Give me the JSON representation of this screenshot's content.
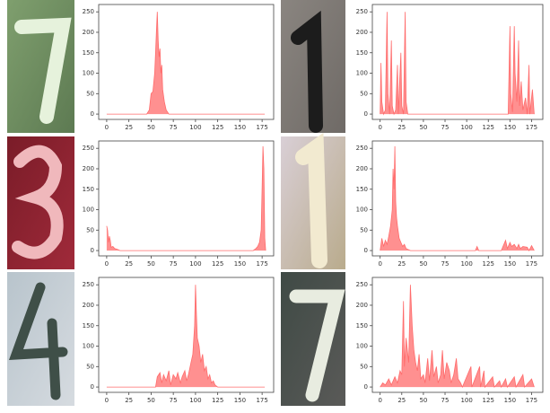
{
  "chart_data": [
    {
      "type": "area",
      "color": "#ff6b6b",
      "xlim": [
        -9,
        188
      ],
      "ylim": [
        -13,
        268
      ],
      "xticks": [
        0,
        25,
        50,
        75,
        100,
        125,
        150,
        175
      ],
      "yticks": [
        0,
        50,
        100,
        150,
        200,
        250
      ],
      "x": [
        0,
        45,
        48,
        50,
        52,
        54,
        55,
        56,
        57,
        58,
        59,
        60,
        61,
        62,
        63,
        65,
        67,
        70,
        178
      ],
      "values": [
        0,
        0,
        10,
        50,
        55,
        100,
        150,
        200,
        250,
        180,
        140,
        160,
        100,
        120,
        60,
        30,
        10,
        0,
        0
      ]
    },
    {
      "type": "area",
      "color": "#ff6b6b",
      "xlim": [
        -9,
        188
      ],
      "ylim": [
        -13,
        268
      ],
      "xticks": [
        0,
        25,
        50,
        75,
        100,
        125,
        150,
        175
      ],
      "yticks": [
        0,
        50,
        100,
        150,
        200,
        250
      ],
      "x": [
        0,
        1,
        2,
        4,
        6,
        8,
        9,
        11,
        13,
        14,
        16,
        18,
        20,
        21,
        24,
        25,
        27,
        29,
        30,
        32,
        148,
        150,
        151,
        153,
        155,
        156,
        158,
        160,
        161,
        163,
        165,
        168,
        170,
        172,
        173,
        176,
        178
      ],
      "values": [
        0,
        125,
        30,
        0,
        10,
        250,
        50,
        0,
        180,
        20,
        0,
        10,
        120,
        0,
        150,
        20,
        0,
        250,
        30,
        0,
        0,
        215,
        50,
        5,
        215,
        100,
        30,
        180,
        20,
        80,
        10,
        40,
        0,
        120,
        0,
        60,
        0
      ]
    },
    {
      "type": "area",
      "color": "#ff6b6b",
      "xlim": [
        -9,
        188
      ],
      "ylim": [
        -13,
        268
      ],
      "xticks": [
        0,
        25,
        50,
        75,
        100,
        125,
        150,
        175
      ],
      "yticks": [
        0,
        50,
        100,
        150,
        200,
        250
      ],
      "x": [
        0,
        1,
        2,
        3,
        4,
        5,
        7,
        9,
        12,
        15,
        165,
        168,
        170,
        172,
        174,
        175,
        176,
        177,
        178,
        179
      ],
      "values": [
        60,
        50,
        20,
        35,
        25,
        8,
        10,
        5,
        3,
        0,
        0,
        5,
        10,
        20,
        50,
        150,
        255,
        200,
        30,
        0
      ]
    },
    {
      "type": "area",
      "color": "#ff6b6b",
      "xlim": [
        -9,
        188
      ],
      "ylim": [
        -13,
        268
      ],
      "xticks": [
        0,
        25,
        50,
        75,
        100,
        125,
        150,
        175
      ],
      "yticks": [
        0,
        50,
        100,
        150,
        200,
        250
      ],
      "x": [
        0,
        2,
        4,
        6,
        8,
        10,
        12,
        14,
        15,
        16,
        17,
        18,
        19,
        20,
        22,
        24,
        26,
        28,
        30,
        35,
        110,
        112,
        114,
        140,
        142,
        145,
        147,
        150,
        152,
        155,
        158,
        160,
        162,
        165,
        170,
        172,
        175,
        178
      ],
      "values": [
        0,
        30,
        10,
        25,
        15,
        35,
        60,
        100,
        200,
        150,
        255,
        120,
        80,
        60,
        30,
        20,
        10,
        15,
        5,
        0,
        0,
        10,
        0,
        0,
        10,
        25,
        5,
        20,
        10,
        15,
        5,
        15,
        5,
        10,
        8,
        0,
        12,
        0
      ]
    },
    {
      "type": "area",
      "color": "#ff6b6b",
      "xlim": [
        -9,
        188
      ],
      "ylim": [
        -13,
        268
      ],
      "xticks": [
        0,
        25,
        50,
        75,
        100,
        125,
        150,
        175
      ],
      "yticks": [
        0,
        50,
        100,
        150,
        200,
        250
      ],
      "x": [
        0,
        55,
        57,
        60,
        62,
        64,
        67,
        70,
        72,
        75,
        78,
        80,
        83,
        85,
        88,
        90,
        92,
        95,
        97,
        99,
        100,
        101,
        102,
        104,
        106,
        108,
        110,
        112,
        114,
        116,
        118,
        120,
        122,
        125,
        178
      ],
      "values": [
        0,
        0,
        25,
        35,
        10,
        30,
        15,
        40,
        5,
        30,
        20,
        35,
        10,
        25,
        40,
        15,
        30,
        60,
        80,
        150,
        250,
        180,
        120,
        100,
        60,
        80,
        40,
        50,
        20,
        30,
        10,
        15,
        5,
        0,
        0
      ]
    },
    {
      "type": "area",
      "color": "#ff6b6b",
      "xlim": [
        -9,
        188
      ],
      "ylim": [
        -13,
        268
      ],
      "xticks": [
        0,
        25,
        50,
        75,
        100,
        125,
        150,
        175
      ],
      "yticks": [
        0,
        50,
        100,
        150,
        200,
        250
      ],
      "x": [
        0,
        3,
        6,
        10,
        13,
        17,
        20,
        23,
        25,
        27,
        28,
        30,
        33,
        35,
        37,
        39,
        41,
        43,
        45,
        47,
        50,
        52,
        55,
        57,
        60,
        62,
        65,
        67,
        70,
        72,
        74,
        77,
        80,
        82,
        85,
        88,
        90,
        93,
        95,
        105,
        106,
        115,
        116,
        120,
        121,
        130,
        132,
        138,
        140,
        145,
        147,
        155,
        157,
        165,
        167,
        175,
        178
      ],
      "values": [
        0,
        10,
        5,
        20,
        5,
        25,
        10,
        40,
        30,
        210,
        50,
        120,
        60,
        250,
        150,
        90,
        60,
        40,
        80,
        20,
        30,
        10,
        70,
        15,
        90,
        25,
        50,
        10,
        30,
        90,
        20,
        60,
        40,
        10,
        30,
        70,
        20,
        10,
        0,
        50,
        0,
        50,
        0,
        40,
        0,
        25,
        0,
        15,
        0,
        20,
        0,
        25,
        0,
        30,
        0,
        20,
        0
      ]
    }
  ]
}
